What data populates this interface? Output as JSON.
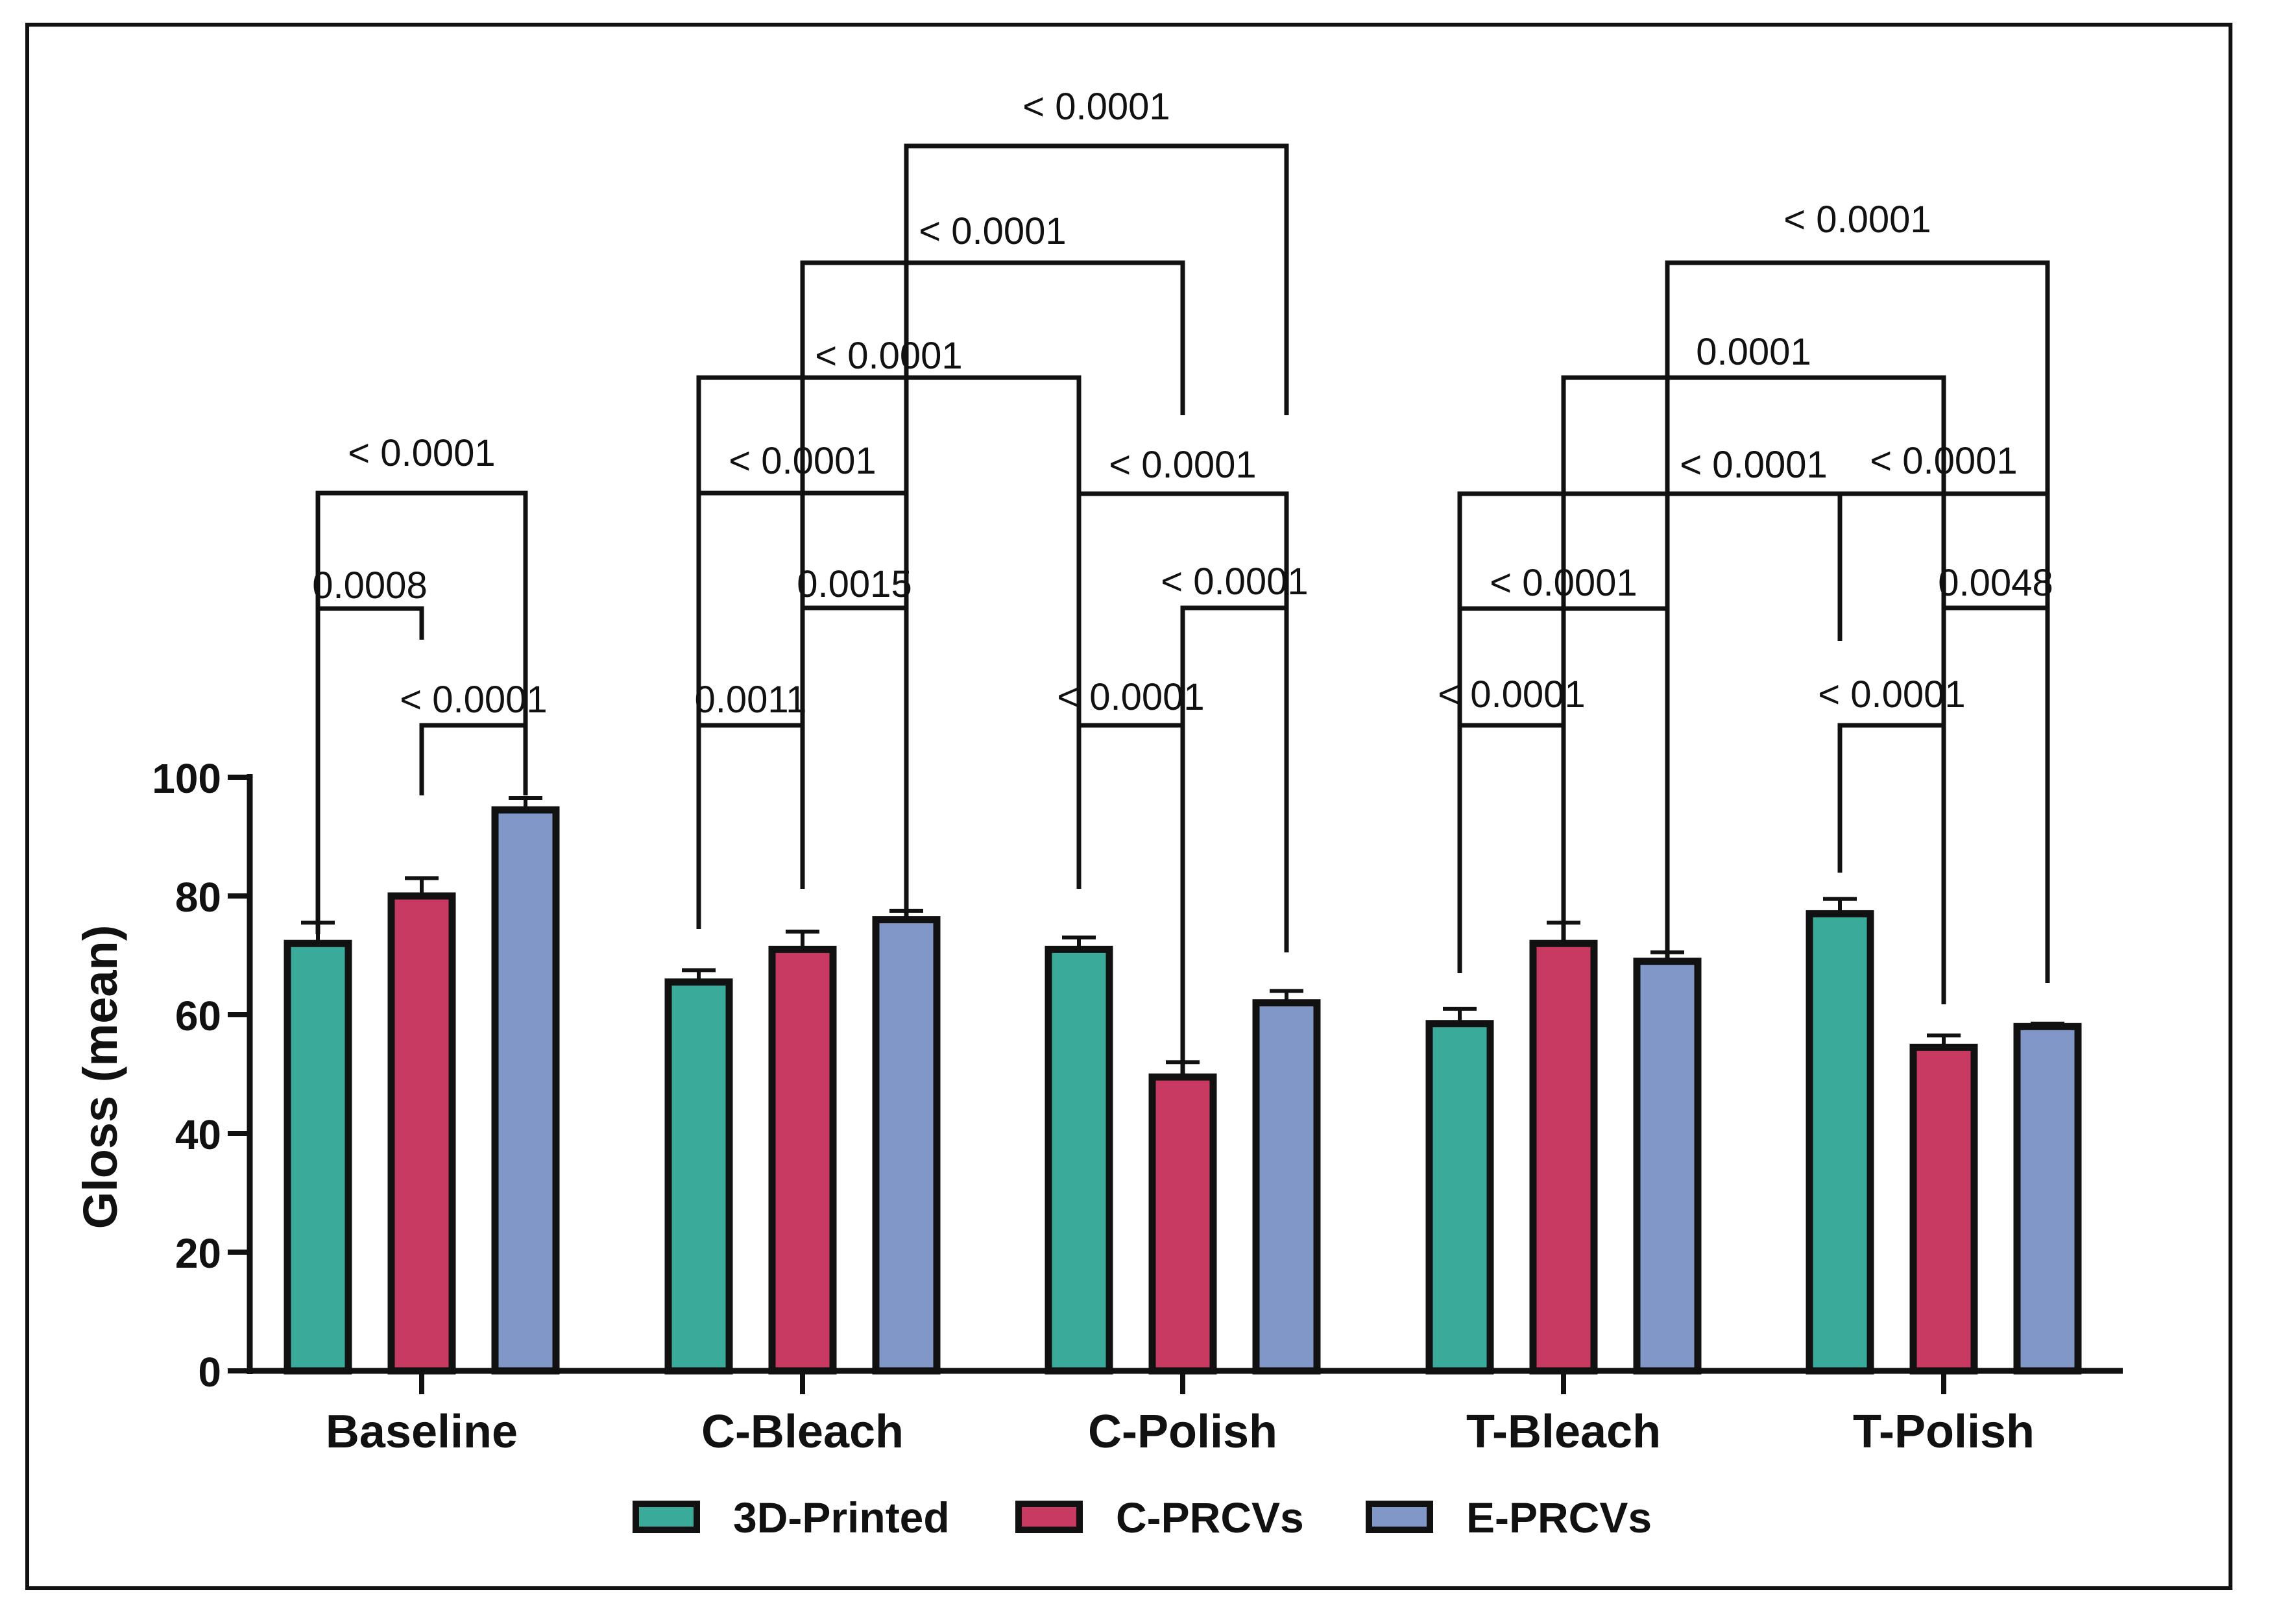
{
  "chart_data": {
    "type": "bar",
    "ylabel": "Gloss (mean)",
    "ylim": [
      0,
      100
    ],
    "yticks": [
      0,
      20,
      40,
      60,
      80,
      100
    ],
    "categories": [
      "Baseline",
      "C-Bleach",
      "C-Polish",
      "T-Bleach",
      "T-Polish"
    ],
    "series": [
      {
        "name": "3D-Printed",
        "color": "#3aaa9b",
        "values": [
          72,
          65.5,
          71,
          58.5,
          77
        ],
        "errors": [
          3.5,
          2,
          2,
          2.5,
          2.5
        ]
      },
      {
        "name": "C-PRCVs",
        "color": "#c83a62",
        "values": [
          80,
          71,
          49.5,
          72,
          54.5
        ],
        "errors": [
          3,
          3,
          2.5,
          3.5,
          2
        ]
      },
      {
        "name": "E-PRCVs",
        "color": "#8097c8",
        "values": [
          94.5,
          76,
          62,
          69,
          58
        ],
        "errors": [
          2,
          1.5,
          2,
          1.5,
          0.5
        ]
      }
    ],
    "legend": "bottom-center",
    "comparisons": [
      {
        "group": 0,
        "from": 0,
        "to": 1,
        "label": "0.0008"
      },
      {
        "group": 0,
        "from": 1,
        "to": 2,
        "label": "< 0.0001"
      },
      {
        "group": 0,
        "from": 0,
        "to": 2,
        "label": "< 0.0001"
      },
      {
        "group": 1,
        "from": 0,
        "to": 1,
        "label": "0.0011"
      },
      {
        "group": 1,
        "from": 1,
        "to": 2,
        "label": "0.0015"
      },
      {
        "group": 1,
        "from": 0,
        "to": 2,
        "label": "< 0.0001"
      },
      {
        "group": 2,
        "from": 0,
        "to": 1,
        "label": "< 0.0001"
      },
      {
        "group": 2,
        "from": 1,
        "to": 2,
        "label": "< 0.0001"
      },
      {
        "group": 2,
        "from": 0,
        "to": 2,
        "label": "< 0.0001"
      },
      {
        "group": 3,
        "from": 0,
        "to": 1,
        "label": "< 0.0001"
      },
      {
        "group": 3,
        "from": 0,
        "to": 2,
        "label": "< 0.0001"
      },
      {
        "group": 4,
        "from": 0,
        "to": 1,
        "label": "< 0.0001"
      },
      {
        "group": 4,
        "from": 1,
        "to": 2,
        "label": "0.0048"
      },
      {
        "group": 4,
        "from": 0,
        "to": 2,
        "label": "< 0.0001"
      },
      {
        "groupA": 1,
        "barA": 0,
        "groupB": 2,
        "barB": 0,
        "label": "< 0.0001"
      },
      {
        "groupA": 1,
        "barA": 1,
        "groupB": 2,
        "barB": 1,
        "label": "< 0.0001"
      },
      {
        "groupA": 1,
        "barA": 2,
        "groupB": 2,
        "barB": 2,
        "label": "< 0.0001"
      },
      {
        "groupA": 3,
        "barA": 2,
        "groupB": 4,
        "barB": 0,
        "label": "< 0.0001"
      },
      {
        "groupA": 3,
        "barA": 0,
        "groupB": 4,
        "barB": 2,
        "label": "< 0.0001"
      },
      {
        "groupA": 3,
        "barA": 1,
        "groupB": 4,
        "barB": 1,
        "label": "0.0001"
      },
      {
        "groupA": 3,
        "barA": 2,
        "groupB": 4,
        "barB": 2,
        "label": "< 0.0001"
      }
    ]
  }
}
